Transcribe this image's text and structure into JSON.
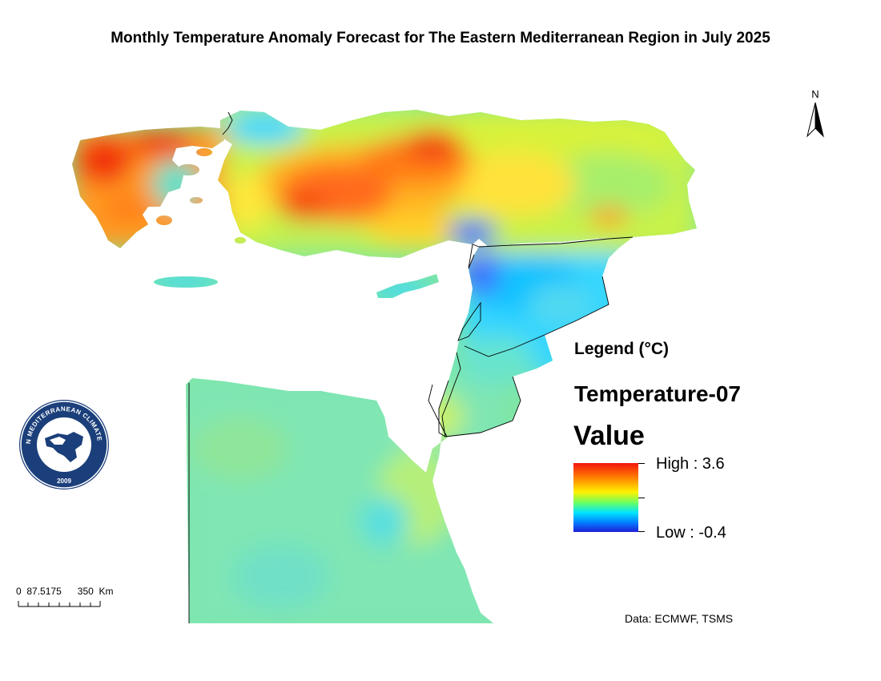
{
  "map": {
    "title": "Monthly Temperature Anomaly Forecast for The Eastern Mediterranean Region in July 2025",
    "north_label": "N",
    "source": "Data: ECMWF, TSMS"
  },
  "legend": {
    "heading": "Legend (°C)",
    "layer_name": "Temperature-07",
    "field_name": "Value",
    "high_label": "High : 3.6",
    "low_label": "Low : -0.4",
    "high_value": 3.6,
    "low_value": -0.4,
    "colors": [
      "#f2140c",
      "#ff7a00",
      "#fff200",
      "#66ff66",
      "#00e5ff",
      "#0080ff",
      "#1f1fd8"
    ]
  },
  "scale_bar": {
    "labels": [
      "0",
      "87.5175",
      "350",
      "Km"
    ]
  },
  "logo": {
    "text": "EASTERN MEDITERRANEAN CLIMATE CENTRE",
    "year": "2009"
  }
}
